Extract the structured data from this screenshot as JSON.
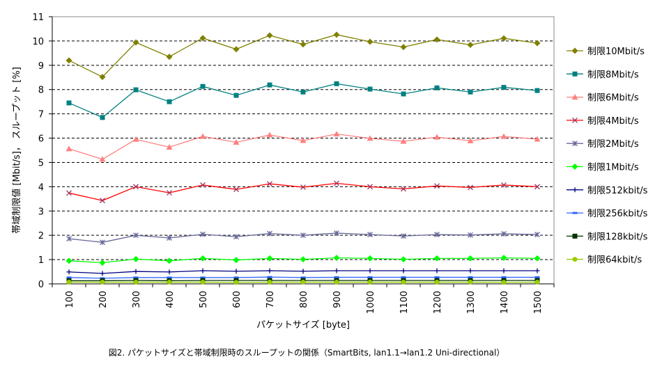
{
  "chart_data": {
    "type": "line",
    "xlabel": "パケットサイズ [byte]",
    "ylabel": "帯域制限値 [Mbit/s]， スループット [%]",
    "caption": "図2. パケットサイズと帯域制限時のスループットの関係（SmartBits, lan1.1→lan1.2 Uni-directional）",
    "categories": [
      "100",
      "200",
      "300",
      "400",
      "500",
      "600",
      "700",
      "800",
      "900",
      "1000",
      "1100",
      "1200",
      "1300",
      "1400",
      "1500"
    ],
    "yticks": [
      "0",
      "1",
      "2",
      "3",
      "4",
      "5",
      "6",
      "7",
      "8",
      "9",
      "10",
      "11"
    ],
    "ylim": [
      0,
      11
    ],
    "grid": "horizontal dashed",
    "legend_position": "right",
    "series": [
      {
        "name": "制限10Mbit/s",
        "color": "#808000",
        "marker": "diamond",
        "values": [
          9.2,
          8.52,
          9.94,
          9.35,
          10.12,
          9.66,
          10.23,
          9.86,
          10.26,
          9.97,
          9.75,
          10.06,
          9.84,
          10.11,
          9.91
        ]
      },
      {
        "name": "制限8Mbit/s",
        "color": "#008080",
        "marker": "square",
        "values": [
          7.45,
          6.85,
          7.99,
          7.5,
          8.13,
          7.76,
          8.19,
          7.9,
          8.24,
          8.02,
          7.82,
          8.07,
          7.9,
          8.09,
          7.96
        ]
      },
      {
        "name": "制限6Mbit/s",
        "color": "#FF8080",
        "marker": "triangle",
        "values": [
          5.56,
          5.13,
          5.95,
          5.63,
          6.07,
          5.83,
          6.13,
          5.9,
          6.17,
          5.99,
          5.87,
          6.04,
          5.89,
          6.07,
          5.96
        ]
      },
      {
        "name": "制限4Mbit/s",
        "color": "#FF0000",
        "markerColor": "#993366",
        "marker": "x",
        "values": [
          3.74,
          3.43,
          4.0,
          3.75,
          4.07,
          3.89,
          4.12,
          3.98,
          4.14,
          4.0,
          3.91,
          4.03,
          3.97,
          4.07,
          4.0
        ]
      },
      {
        "name": "制限2Mbit/s",
        "color": "#666699",
        "marker": "asterisk",
        "values": [
          1.86,
          1.71,
          2.0,
          1.89,
          2.04,
          1.94,
          2.07,
          2.0,
          2.09,
          2.03,
          1.97,
          2.03,
          2.01,
          2.06,
          2.03
        ]
      },
      {
        "name": "制限1Mbit/s",
        "color": "#00FF00",
        "marker": "diamond",
        "values": [
          0.95,
          0.87,
          1.02,
          0.95,
          1.05,
          0.98,
          1.05,
          1.01,
          1.07,
          1.05,
          1.01,
          1.05,
          1.05,
          1.07,
          1.05
        ]
      },
      {
        "name": "制限512kbit/s",
        "color": "#000080",
        "marker": "plus",
        "values": [
          0.49,
          0.43,
          0.51,
          0.49,
          0.54,
          0.52,
          0.54,
          0.52,
          0.54,
          0.54,
          0.54,
          0.54,
          0.54,
          0.54,
          0.54
        ]
      },
      {
        "name": "制限256kbit/s",
        "color": "#3366FF",
        "marker": "dash",
        "values": [
          0.26,
          0.23,
          0.26,
          0.26,
          0.26,
          0.26,
          0.28,
          0.26,
          0.27,
          0.27,
          0.27,
          0.27,
          0.27,
          0.27,
          0.27
        ]
      },
      {
        "name": "制限128kbit/s",
        "color": "#003300",
        "marker": "square",
        "values": [
          0.13,
          0.13,
          0.14,
          0.13,
          0.14,
          0.14,
          0.14,
          0.14,
          0.14,
          0.14,
          0.14,
          0.14,
          0.14,
          0.14,
          0.14
        ]
      },
      {
        "name": "制限64kbit/s",
        "color": "#99CC00",
        "marker": "circle",
        "values": [
          0.07,
          0.07,
          0.07,
          0.07,
          0.07,
          0.06,
          0.07,
          0.07,
          0.07,
          0.07,
          0.07,
          0.07,
          0.07,
          0.06,
          0.07
        ]
      }
    ]
  }
}
